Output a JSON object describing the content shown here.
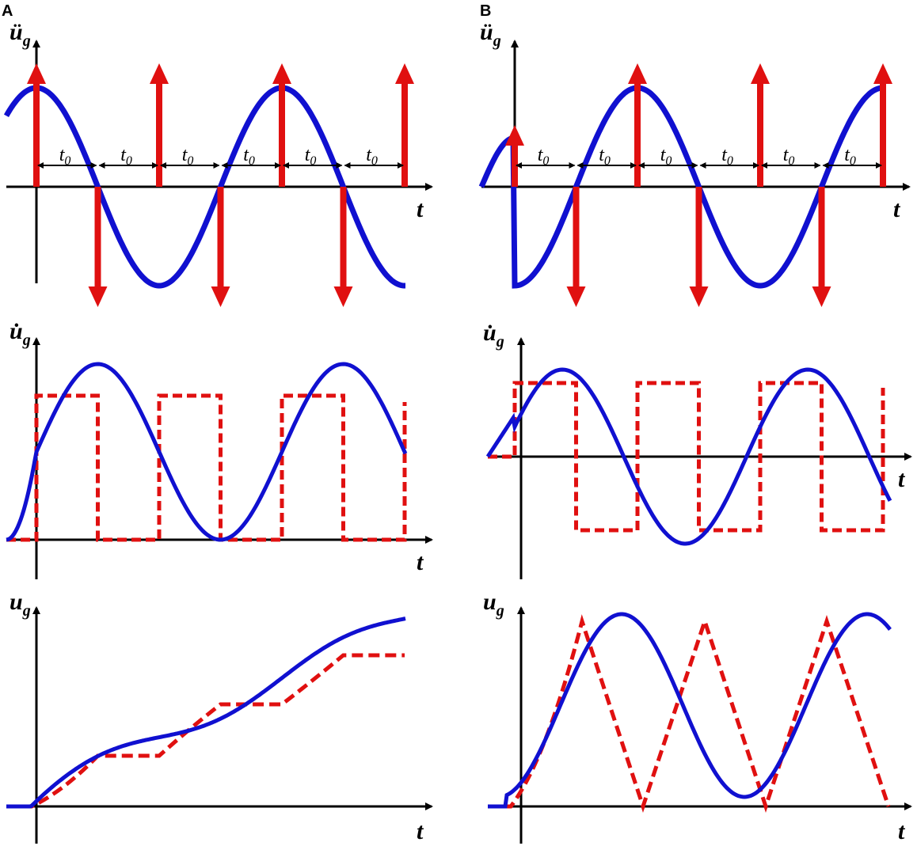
{
  "figure": {
    "panels": [
      {
        "letter": "A",
        "plots": [
          {
            "id": "accel",
            "ylabel": "ü",
            "ysub": "g",
            "xlabel": "t",
            "interval_label": "t",
            "interval_sub": "0"
          },
          {
            "id": "vel",
            "ylabel": "u̇",
            "ysub": "g",
            "xlabel": "t"
          },
          {
            "id": "disp",
            "ylabel": "u",
            "ysub": "g",
            "xlabel": "t"
          }
        ]
      },
      {
        "letter": "B",
        "plots": [
          {
            "id": "accel",
            "ylabel": "ü",
            "ysub": "g",
            "xlabel": "t",
            "interval_label": "t",
            "interval_sub": "0"
          },
          {
            "id": "vel",
            "ylabel": "u̇",
            "ysub": "g",
            "xlabel": "t"
          },
          {
            "id": "disp",
            "ylabel": "u",
            "ysub": "g",
            "xlabel": "t"
          }
        ]
      }
    ],
    "colors": {
      "sine": "#1010d0",
      "pulse": "#e01010",
      "axis": "#000000"
    }
  }
}
